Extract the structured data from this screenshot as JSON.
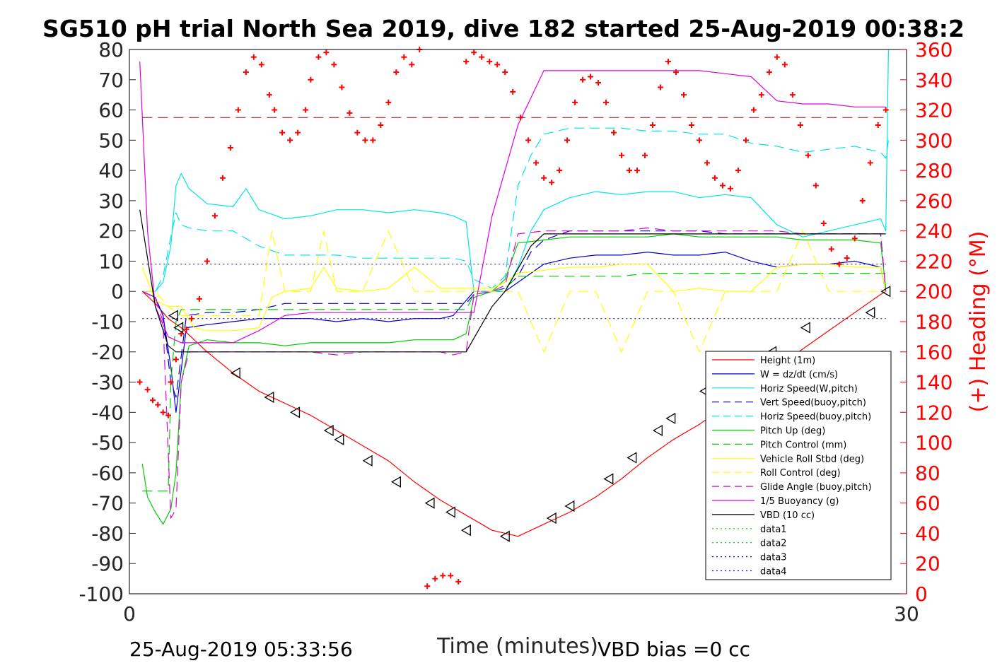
{
  "chart_data": {
    "type": "line",
    "title": "SG510 pH trial North Sea 2019, dive 182 started 25-Aug-2019 00:38:2",
    "xlabel": "Time (minutes)",
    "ylabel": "",
    "ylabel_right": "(+) Heading (°M)",
    "xlim": [
      0,
      30
    ],
    "ylim": [
      -100,
      80
    ],
    "ylim_right": [
      0,
      360
    ],
    "x_ticks": [
      "0",
      "30"
    ],
    "y_ticks": [
      "80",
      "70",
      "60",
      "50",
      "40",
      "30",
      "20",
      "10",
      "0",
      "-10",
      "-20",
      "-30",
      "-40",
      "-50",
      "-60",
      "-70",
      "-80",
      "-90",
      "-100"
    ],
    "y_ticks_right": [
      "360",
      "340",
      "320",
      "300",
      "280",
      "260",
      "240",
      "220",
      "200",
      "180",
      "160",
      "140",
      "120",
      "100",
      "80",
      "60",
      "40",
      "20",
      "0"
    ],
    "grid": false,
    "legend_position": "bottom-right",
    "footer_left": "25-Aug-2019 05:33:56",
    "footer_right": "VBD bias =0 cc",
    "series": [
      {
        "name": "Height (1m)",
        "color": "#ff0000",
        "style": "solid",
        "x": [
          0.5,
          1,
          1.5,
          2,
          3,
          4,
          5,
          6,
          7,
          8,
          9,
          10,
          11,
          12,
          13,
          14,
          14.5,
          15,
          16,
          17,
          18,
          19,
          20,
          21,
          22,
          23,
          24,
          25,
          26,
          27,
          28,
          29,
          29.2
        ],
        "y": [
          0,
          -4,
          -9,
          -12,
          -20,
          -27,
          -33,
          -37,
          -41,
          -46,
          -51,
          -56,
          -63,
          -69,
          -74,
          -79,
          -80,
          -81,
          -77,
          -73,
          -68,
          -62,
          -55,
          -49,
          -44,
          -38,
          -31,
          -25,
          -19,
          -13,
          -7,
          -1,
          0
        ]
      },
      {
        "name": "W = dz/dt (cm/s)",
        "color": "#0000cc",
        "style": "solid",
        "x": [
          0.5,
          1,
          1.3,
          1.6,
          1.8,
          2.2,
          3,
          4,
          5,
          6,
          7,
          8,
          9,
          10,
          11,
          12,
          12.5,
          13,
          13.3,
          14,
          14.5,
          15,
          15.5,
          16,
          17,
          18,
          19,
          20,
          21,
          22,
          23,
          24,
          25,
          26,
          27,
          28,
          29,
          29.2
        ],
        "y": [
          0,
          -2,
          -8,
          -25,
          -40,
          -12,
          -11,
          -10,
          -9,
          -9,
          -9,
          -10,
          -9,
          -10,
          -9,
          -9,
          -8,
          -3,
          0,
          0,
          0,
          3,
          6,
          9,
          11,
          12,
          12,
          13,
          12,
          12,
          13,
          10,
          8,
          9,
          9,
          10,
          8,
          0
        ]
      },
      {
        "name": "Horiz Speed(W,pitch)",
        "color": "#00e5e5",
        "style": "solid",
        "x": [
          0.5,
          1,
          1.3,
          1.6,
          1.8,
          2,
          2.3,
          3,
          4,
          4.5,
          5,
          6,
          7,
          8,
          9,
          10,
          11,
          12,
          12.5,
          13,
          13.3,
          14,
          14.5,
          15,
          15.5,
          16,
          17,
          18,
          19,
          20,
          21,
          22,
          23,
          24,
          25,
          26,
          27,
          28,
          29,
          29.2,
          29.3
        ],
        "y": [
          0,
          0,
          3,
          15,
          35,
          39,
          34,
          29,
          28,
          34,
          27,
          24,
          25,
          27,
          27,
          26,
          27,
          26,
          25,
          23,
          0,
          0,
          0,
          8,
          20,
          27,
          31,
          33,
          32,
          33,
          33,
          31,
          32,
          31,
          22,
          18,
          20,
          22,
          24,
          20,
          80
        ]
      },
      {
        "name": "Vert Speed(buoy,pitch)",
        "color": "#0000cc",
        "style": "dashed",
        "x": [
          0.5,
          1,
          1.3,
          1.6,
          1.8,
          2.2,
          3,
          4,
          5,
          6,
          7,
          8,
          9,
          10,
          11,
          12,
          12.5,
          13,
          13.3,
          14,
          14.5,
          15,
          15.5,
          16,
          17,
          18,
          19,
          20,
          21,
          22,
          23,
          24,
          25,
          26,
          27,
          28,
          29,
          29.2
        ],
        "y": [
          0,
          -2,
          -8,
          -30,
          -35,
          -8,
          -7,
          -7,
          -6,
          -4,
          -4,
          -4,
          -4,
          -4,
          -4,
          -4,
          -4,
          -4,
          -1,
          0,
          1,
          5,
          13,
          17,
          20,
          20,
          20,
          20,
          20,
          20,
          19,
          19,
          19,
          19,
          19,
          19,
          19,
          0
        ]
      },
      {
        "name": "Horiz Speed(buoy,pitch)",
        "color": "#00e5e5",
        "style": "dashed",
        "x": [
          0.5,
          1,
          1.3,
          1.6,
          1.8,
          2,
          2.3,
          3,
          4,
          5,
          6,
          7,
          8,
          9,
          10,
          11,
          12,
          12.5,
          13,
          13.3,
          14,
          14.5,
          15,
          15.5,
          16,
          17,
          18,
          19,
          20,
          21,
          22,
          23,
          24,
          25,
          26,
          27,
          28,
          29,
          29.2,
          29.3
        ],
        "y": [
          0,
          0,
          5,
          18,
          26,
          22,
          21,
          20,
          20,
          15,
          12,
          12,
          12,
          11,
          11,
          11,
          11,
          11,
          10,
          4,
          1,
          5,
          35,
          45,
          52,
          54,
          54,
          54,
          53,
          53,
          52,
          52,
          49,
          48,
          46,
          47,
          48,
          46,
          44,
          50
        ]
      },
      {
        "name": "Pitch Up (deg)",
        "color": "#00cc00",
        "style": "solid",
        "x": [
          0.5,
          0.7,
          1,
          1.3,
          1.6,
          1.8,
          2,
          2.3,
          3,
          4,
          5,
          6,
          7,
          8,
          9,
          10,
          11,
          12,
          12.5,
          13,
          13.3,
          14,
          14.5,
          15,
          16,
          17,
          18,
          19,
          20,
          21,
          22,
          23,
          24,
          25,
          26,
          27,
          28,
          29,
          29.2
        ],
        "y": [
          -57,
          -68,
          -73,
          -77,
          -72,
          -60,
          -30,
          -18,
          -16,
          -17,
          -17,
          -18,
          -17,
          -17,
          -17,
          -17,
          -16,
          -16,
          -16,
          -14,
          -2,
          0,
          4,
          16,
          17,
          18,
          18,
          18,
          18,
          19,
          18,
          18,
          18,
          18,
          17,
          17,
          17,
          16,
          1
        ]
      },
      {
        "name": "Pitch Control (mm)",
        "color": "#00cc00",
        "style": "dashed",
        "x": [
          0.5,
          1,
          1.3,
          1.5,
          1.6,
          1.8,
          2,
          3,
          4,
          5,
          6,
          7,
          8,
          9,
          10,
          11,
          12,
          12.5,
          13,
          13.3,
          14,
          14.5,
          15,
          16,
          17,
          18,
          19,
          20,
          21,
          22,
          23,
          24,
          25,
          26,
          27,
          28,
          29,
          29.2
        ],
        "y": [
          -66,
          -66,
          -66,
          -66,
          -30,
          -10,
          -6,
          -6,
          -6,
          -6,
          -6,
          -6,
          -6,
          -6,
          -6,
          -6,
          -6,
          -6,
          -6,
          -1,
          0,
          1,
          5,
          5,
          5,
          5,
          5,
          6,
          6,
          6,
          6,
          6,
          6,
          6,
          6,
          6,
          6,
          6
        ]
      },
      {
        "name": "Vehicle Roll Stbd (deg)",
        "color": "#ffff00",
        "style": "solid",
        "x": [
          0.5,
          1,
          1.5,
          2,
          2.5,
          3,
          4,
          5,
          5.5,
          6,
          7,
          7.5,
          8,
          9,
          10,
          11,
          12,
          12.5,
          13,
          13.3,
          14,
          14.5,
          15,
          16,
          17,
          18,
          19,
          20,
          21,
          22,
          23,
          24,
          25,
          26,
          27,
          28,
          29,
          29.2
        ],
        "y": [
          8,
          -3,
          -5,
          -5,
          -12,
          -13,
          -13,
          -12,
          -2,
          0,
          1,
          8,
          1,
          0,
          1,
          8,
          1,
          1,
          1,
          1,
          1,
          3,
          6,
          7,
          8,
          8,
          9,
          9,
          0,
          1,
          0,
          0,
          8,
          9,
          9,
          8,
          8,
          0
        ]
      },
      {
        "name": "Roll Control (deg)",
        "color": "#ffff00",
        "style": "dashed",
        "x": [
          0.5,
          1,
          1.5,
          2,
          3,
          4,
          5,
          5.5,
          6,
          7,
          7.5,
          8,
          9,
          10,
          11,
          12,
          13,
          14,
          15,
          16,
          17,
          18,
          19,
          20,
          21,
          22,
          23,
          24,
          25,
          26,
          27,
          28,
          29,
          29.2
        ],
        "y": [
          0,
          0,
          -5,
          -8,
          -8,
          -8,
          -8,
          20,
          0,
          0,
          20,
          0,
          0,
          20,
          0,
          0,
          0,
          0,
          0,
          -20,
          0,
          0,
          -20,
          0,
          0,
          -20,
          0,
          0,
          0,
          20,
          0,
          0,
          0,
          0
        ]
      },
      {
        "name": "Glide Angle (buoy,pitch)",
        "color": "#e000e0",
        "style": "dashed",
        "x": [
          0.5,
          1,
          1.3,
          1.6,
          1.8,
          2,
          2.3,
          3,
          4,
          5,
          6,
          7,
          8,
          9,
          10,
          11,
          12,
          12.5,
          13,
          13.3,
          14,
          14.5,
          15,
          16,
          17,
          18,
          19,
          20,
          21,
          22,
          23,
          24,
          25,
          26,
          27,
          28,
          29,
          29.2
        ],
        "y": [
          0,
          -2,
          -10,
          -75,
          -72,
          -30,
          -20,
          -20,
          -20,
          -20,
          -20,
          -20,
          -21,
          -20,
          -20,
          -20,
          -20,
          -21,
          -20,
          -1,
          0,
          2,
          19,
          20,
          20,
          20,
          20,
          21,
          20,
          20,
          20,
          20,
          20,
          19,
          19,
          19,
          19,
          0
        ]
      },
      {
        "name": "1/5 Buoyancy (g)",
        "color": "#e000e0",
        "style": "solid",
        "x": [
          0.4,
          0.7,
          1,
          1.5,
          2,
          3,
          4,
          5,
          6,
          7,
          8,
          9,
          10,
          11,
          12,
          12.5,
          13,
          13.3,
          14,
          14.5,
          15,
          16,
          17,
          18,
          19,
          20,
          21,
          22,
          23,
          24,
          25,
          26,
          27,
          28,
          29,
          29.2
        ],
        "y": [
          76,
          20,
          -5,
          -15,
          -17,
          -17,
          -17,
          -13,
          -8,
          -7,
          -7,
          -7,
          -7,
          -7,
          -7,
          -7,
          -7,
          -7,
          25,
          40,
          55,
          73,
          73,
          73,
          73,
          73,
          73,
          73,
          72,
          71,
          63,
          62,
          62,
          61,
          61,
          61
        ]
      },
      {
        "name": "VBD (10 cc)",
        "color": "#000000",
        "style": "solid",
        "x": [
          0.4,
          1,
          1.5,
          1.8,
          2.5,
          3,
          5,
          7,
          9,
          11,
          12.5,
          13,
          14,
          14.5,
          15.5,
          16,
          29.2
        ],
        "y": [
          27,
          -5,
          -18,
          -20,
          -20,
          -20,
          -20,
          -20,
          -20,
          -20,
          -20,
          -20,
          -5,
          0,
          15,
          19,
          19
        ]
      },
      {
        "name": "data1",
        "color": "#00cc00",
        "style": "dotted",
        "x": [],
        "y": []
      },
      {
        "name": "data2",
        "color": "#00cc00",
        "style": "dotted",
        "x": [],
        "y": []
      },
      {
        "name": "data3",
        "color": "#0000cc",
        "style": "dotted",
        "x": [],
        "y": []
      },
      {
        "name": "data4",
        "color": "#0000cc",
        "style": "dotted",
        "x": [],
        "y": []
      }
    ],
    "reference_lines": [
      {
        "y": 57.5,
        "color": "#aa0000",
        "style": "dashed"
      },
      {
        "y": 9,
        "color": "#000080",
        "style": "dotted"
      },
      {
        "y": -9,
        "color": "#000080",
        "style": "dotted"
      }
    ],
    "triangle_markers": {
      "x": [
        1.7,
        1.9,
        4.1,
        5.4,
        6.4,
        7.7,
        8.1,
        9.2,
        10.3,
        11.6,
        12.4,
        13.0,
        14.5,
        16.3,
        17.0,
        18.5,
        19.4,
        20.4,
        20.9,
        22.2,
        24.8,
        26.1,
        28.6,
        29.2
      ],
      "y": [
        -8,
        -12,
        -27,
        -35,
        -40,
        -46,
        -49,
        -56,
        -63,
        -70,
        -73,
        -79,
        -81,
        -75,
        -71,
        -62,
        -55,
        -46,
        -42,
        -33,
        -20,
        -12,
        -7,
        0
      ]
    },
    "heading_series": {
      "name": "Heading",
      "color": "#ff0000",
      "axis": "right",
      "x": [
        0.4,
        0.7,
        0.9,
        1.1,
        1.3,
        1.5,
        1.6,
        1.8,
        2.0,
        2.2,
        2.4,
        2.7,
        3.0,
        3.3,
        3.6,
        3.9,
        4.2,
        4.5,
        4.8,
        5.1,
        5.4,
        5.6,
        5.9,
        6.2,
        6.5,
        6.8,
        7.0,
        7.3,
        7.6,
        7.9,
        8.2,
        8.5,
        8.8,
        9.1,
        9.4,
        9.7,
        10,
        10.3,
        10.6,
        10.9,
        11.2,
        11.5,
        11.8,
        12.1,
        12.4,
        12.7,
        13.0,
        13.3,
        13.6,
        13.9,
        14.2,
        14.5,
        14.8,
        15.1,
        15.4,
        15.7,
        16.0,
        16.3,
        16.6,
        16.9,
        17.2,
        17.5,
        17.8,
        18.1,
        18.4,
        18.7,
        19.0,
        19.3,
        19.6,
        19.9,
        20.2,
        20.5,
        20.8,
        21.1,
        21.4,
        21.7,
        22.0,
        22.3,
        22.6,
        22.9,
        23.2,
        23.5,
        23.8,
        24.1,
        24.4,
        24.7,
        25.0,
        25.3,
        25.6,
        25.9,
        26.2,
        26.5,
        26.8,
        27.1,
        27.4,
        27.7,
        28.0,
        28.3,
        28.6,
        28.9,
        29.2
      ],
      "y": [
        140,
        135,
        128,
        125,
        120,
        118,
        140,
        155,
        172,
        175,
        182,
        195,
        220,
        250,
        275,
        295,
        320,
        345,
        355,
        350,
        330,
        320,
        305,
        300,
        305,
        320,
        340,
        355,
        358,
        350,
        335,
        318,
        305,
        300,
        300,
        310,
        325,
        345,
        355,
        350,
        360,
        365,
        370,
        372,
        372,
        368,
        352,
        358,
        355,
        352,
        350,
        345,
        332,
        315,
        300,
        285,
        275,
        272,
        280,
        300,
        325,
        340,
        342,
        338,
        325,
        305,
        290,
        280,
        280,
        290,
        310,
        335,
        352,
        345,
        330,
        310,
        300,
        285,
        275,
        270,
        268,
        280,
        300,
        320,
        330,
        345,
        355,
        350,
        330,
        310,
        290,
        270,
        245,
        228,
        218,
        222,
        235,
        260,
        285,
        310,
        320
      ]
    }
  }
}
